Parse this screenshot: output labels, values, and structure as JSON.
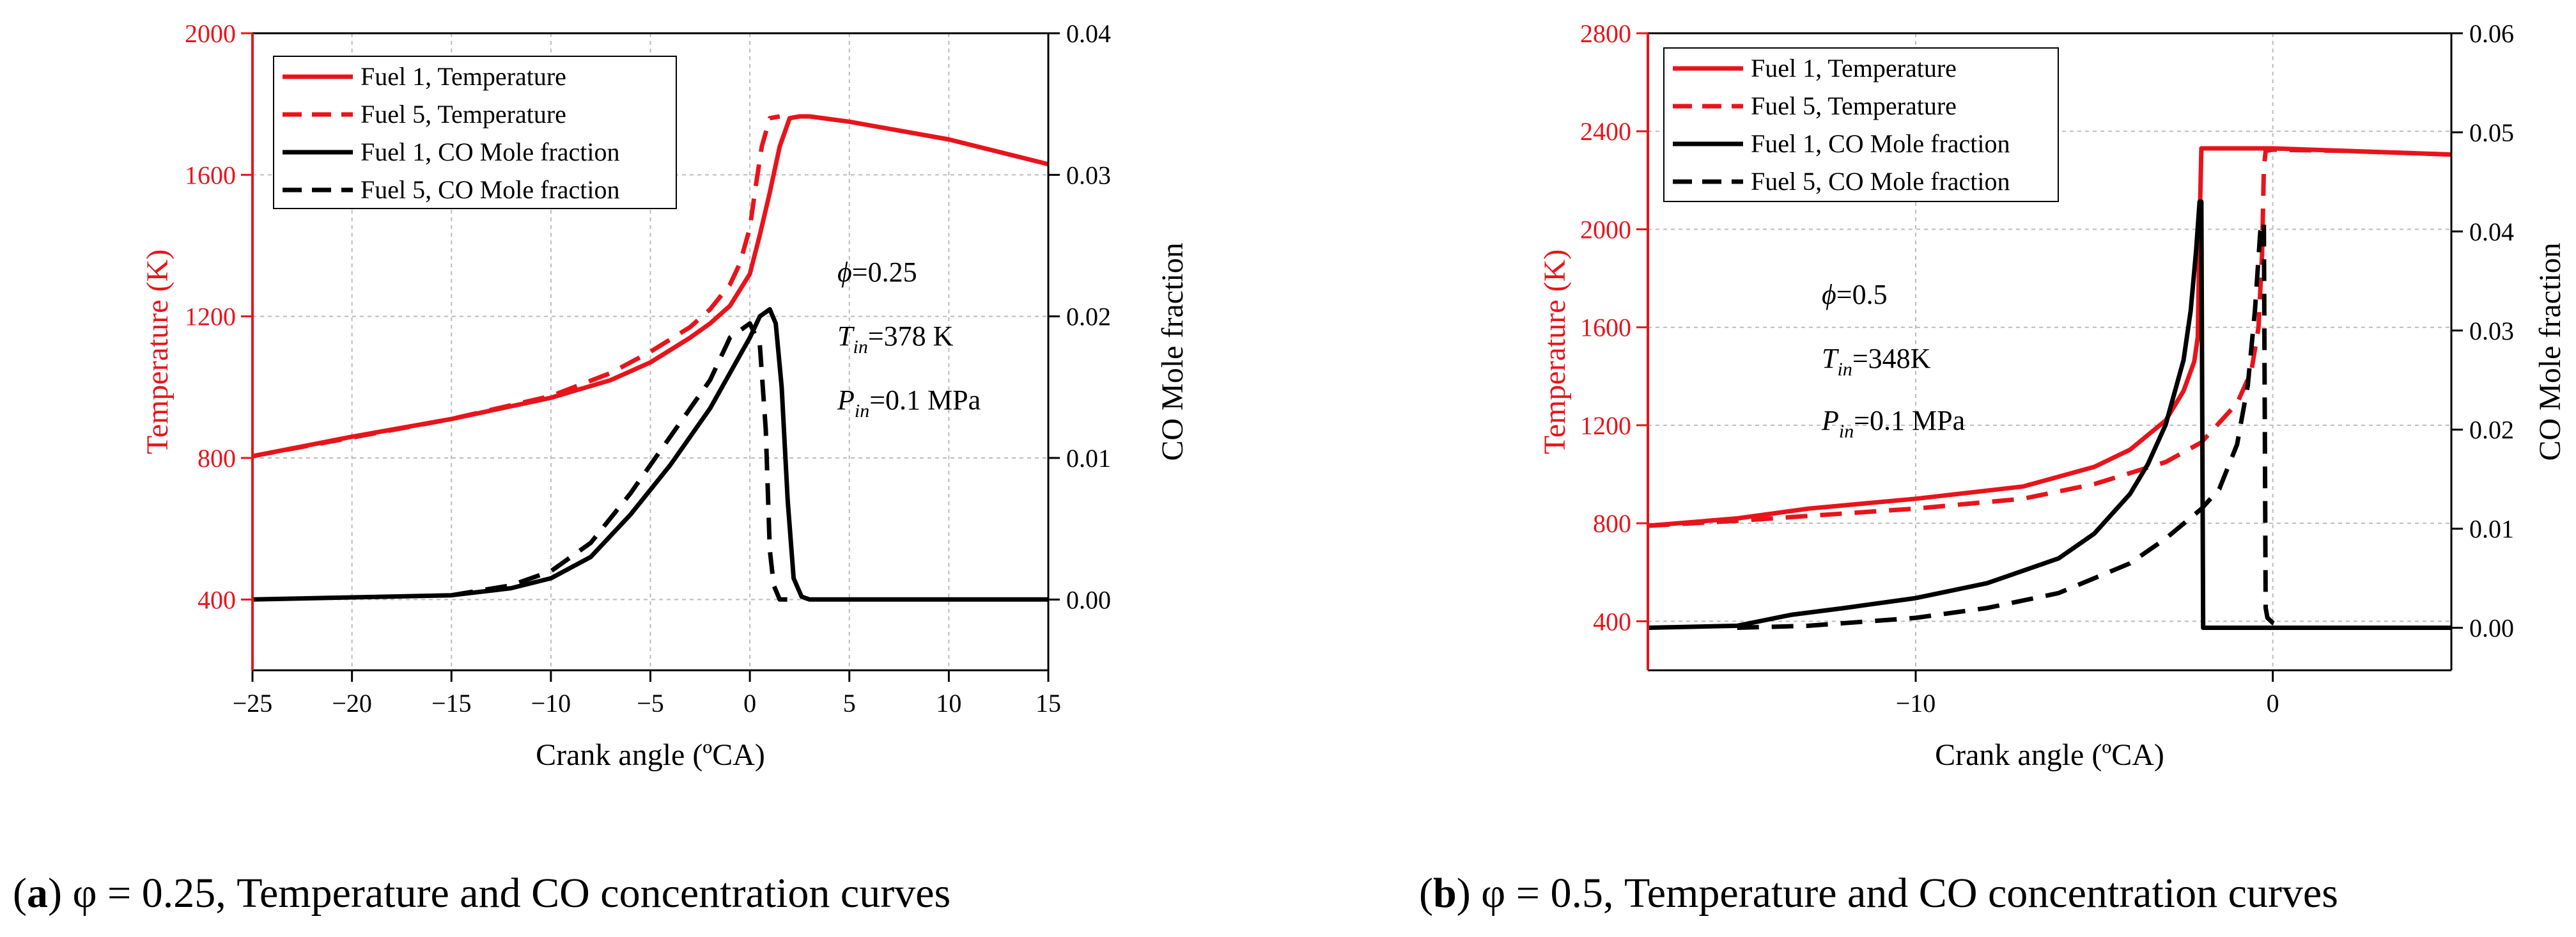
{
  "chart_data": [
    {
      "type": "line",
      "caption_letter": "a",
      "caption_text": " φ = 0.25, Temperature and CO concentration curves",
      "xlabel": "Crank angle (ºCA)",
      "ylabel_left": "Temperature (K)",
      "ylabel_right": "CO Mole fraction",
      "xlim": [
        -25,
        15
      ],
      "ylim_left": [
        200,
        2000
      ],
      "ylim_right": [
        -0.005,
        0.04
      ],
      "x_ticks": [
        -25,
        -20,
        -15,
        -10,
        -5,
        0,
        5,
        10,
        15
      ],
      "x_tick_labels": [
        "−25",
        "−20",
        "−15",
        "−10",
        "−5",
        "0",
        "5",
        "10",
        "15"
      ],
      "y_left_ticks": [
        400,
        800,
        1200,
        1600,
        2000
      ],
      "y_left_tick_labels": [
        "400",
        "800",
        "1200",
        "1600",
        "2000"
      ],
      "y_right_ticks": [
        0.0,
        0.01,
        0.02,
        0.03,
        0.04
      ],
      "y_right_tick_labels": [
        "0.00",
        "0.01",
        "0.02",
        "0.03",
        "0.04"
      ],
      "grid": true,
      "legend_position": "top-left",
      "annotation": {
        "phi_symbol": "ϕ",
        "phi_value": "=0.25",
        "t_main": "T",
        "t_sub": "in",
        "t_value": "=378 K",
        "p_main": "P",
        "p_sub": "in",
        "p_value": "=0.1 MPa"
      },
      "series": [
        {
          "name": "Fuel 1, Temperature",
          "color": "#e8141b",
          "dash": "solid",
          "axis": "left",
          "x": [
            -25,
            -20,
            -15,
            -10,
            -7,
            -5,
            -3,
            -2,
            -1,
            0,
            0.5,
            1.0,
            1.5,
            2.0,
            2.5,
            3,
            5,
            10,
            15
          ],
          "y": [
            805,
            860,
            910,
            970,
            1020,
            1070,
            1140,
            1180,
            1230,
            1320,
            1430,
            1550,
            1680,
            1760,
            1765,
            1765,
            1750,
            1700,
            1630
          ]
        },
        {
          "name": "Fuel 5, Temperature",
          "color": "#e8141b",
          "dash": "dashed",
          "axis": "left",
          "x": [
            -25,
            -15,
            -10,
            -7,
            -5,
            -3,
            -2,
            -1,
            -0.5,
            0,
            0.3,
            0.6,
            1.0,
            1.5
          ],
          "y": [
            805,
            910,
            975,
            1040,
            1100,
            1170,
            1220,
            1290,
            1350,
            1450,
            1570,
            1680,
            1760,
            1765
          ]
        },
        {
          "name": "Fuel 1, CO Mole fraction",
          "color": "#000000",
          "dash": "solid",
          "axis": "right",
          "x": [
            -25,
            -15,
            -12,
            -10,
            -8,
            -6,
            -4,
            -2,
            -1,
            0,
            0.5,
            1.0,
            1.3,
            1.6,
            1.9,
            2.2,
            2.6,
            3,
            15
          ],
          "y": [
            0.0,
            0.0003,
            0.0008,
            0.0015,
            0.003,
            0.006,
            0.0095,
            0.0135,
            0.016,
            0.0185,
            0.02,
            0.0205,
            0.0195,
            0.015,
            0.007,
            0.0015,
            0.0002,
            0.0,
            0.0
          ]
        },
        {
          "name": "Fuel 5, CO Mole fraction",
          "color": "#000000",
          "dash": "dashed",
          "axis": "right",
          "x": [
            -15,
            -12,
            -10,
            -8,
            -6,
            -4,
            -2,
            -1,
            0,
            0.5,
            0.8,
            1.0,
            1.2,
            1.5,
            2.0
          ],
          "y": [
            0.0003,
            0.001,
            0.002,
            0.004,
            0.0075,
            0.0115,
            0.0155,
            0.0185,
            0.0195,
            0.018,
            0.012,
            0.0035,
            0.001,
            0.0,
            0.0
          ]
        }
      ]
    },
    {
      "type": "line",
      "caption_letter": "b",
      "caption_text": " φ = 0.5, Temperature and CO concentration curves",
      "xlabel": "Crank angle (ºCA)",
      "ylabel_left": "Temperature (K)",
      "ylabel_right": "CO Mole fraction",
      "xlim": [
        -17.5,
        5
      ],
      "ylim_left": [
        200,
        2800
      ],
      "ylim_right": [
        -0.00429,
        0.06
      ],
      "x_ticks": [
        -10,
        0
      ],
      "x_tick_labels": [
        "−10",
        "0"
      ],
      "y_left_ticks": [
        400,
        800,
        1200,
        1600,
        2000,
        2400,
        2800
      ],
      "y_left_tick_labels": [
        "400",
        "800",
        "1200",
        "1600",
        "2000",
        "2400",
        "2800"
      ],
      "y_right_ticks": [
        0.0,
        0.01,
        0.02,
        0.03,
        0.04,
        0.05,
        0.06
      ],
      "y_right_tick_labels": [
        "0.00",
        "0.01",
        "0.02",
        "0.03",
        "0.04",
        "0.05",
        "0.06"
      ],
      "grid": true,
      "legend_position": "top-left",
      "annotation": {
        "phi_symbol": "ϕ",
        "phi_value": "=0.5",
        "t_main": "T",
        "t_sub": "in",
        "t_value": "=348K",
        "p_main": "P",
        "p_sub": "in",
        "p_value": "=0.1 MPa"
      },
      "series": [
        {
          "name": "Fuel 1, Temperature",
          "color": "#e8141b",
          "dash": "solid",
          "axis": "left",
          "x": [
            -17.5,
            -15,
            -13,
            -10,
            -7,
            -5,
            -4,
            -3,
            -2.5,
            -2.2,
            -2.1,
            -2.05,
            -2.0,
            -1.5,
            0,
            5
          ],
          "y": [
            790,
            820,
            860,
            900,
            950,
            1030,
            1100,
            1220,
            1340,
            1460,
            1560,
            2000,
            2330,
            2330,
            2330,
            2305
          ]
        },
        {
          "name": "Fuel 5, Temperature",
          "color": "#e8141b",
          "dash": "dashed",
          "axis": "left",
          "x": [
            -17.5,
            -15,
            -12,
            -10,
            -7,
            -5,
            -3,
            -2,
            -1,
            -0.6,
            -0.4,
            -0.3,
            -0.25,
            -0.2,
            0,
            2,
            5
          ],
          "y": [
            790,
            810,
            840,
            860,
            900,
            960,
            1050,
            1130,
            1290,
            1420,
            1600,
            1900,
            2250,
            2320,
            2325,
            2320,
            2305
          ]
        },
        {
          "name": "Fuel 1, CO Mole fraction",
          "color": "#000000",
          "dash": "solid",
          "axis": "right",
          "x": [
            -17.5,
            -15,
            -13.5,
            -12,
            -10,
            -8,
            -6,
            -5,
            -4,
            -3.5,
            -3,
            -2.5,
            -2.3,
            -2.15,
            -2.05,
            -2.0,
            -1.95,
            0,
            5
          ],
          "y": [
            0.0,
            0.0002,
            0.0013,
            0.002,
            0.003,
            0.0045,
            0.007,
            0.0095,
            0.0135,
            0.0165,
            0.0205,
            0.027,
            0.032,
            0.038,
            0.043,
            0.043,
            0.0,
            0.0,
            0.0
          ]
        },
        {
          "name": "Fuel 5, CO Mole fraction",
          "color": "#000000",
          "dash": "dashed",
          "axis": "right",
          "x": [
            -15,
            -13,
            -10,
            -8,
            -6,
            -4,
            -3,
            -2,
            -1.5,
            -1,
            -0.7,
            -0.5,
            -0.35,
            -0.25,
            -0.2,
            -0.15,
            0,
            0.3
          ],
          "y": [
            0.0,
            0.0002,
            0.001,
            0.002,
            0.0035,
            0.0065,
            0.009,
            0.012,
            0.014,
            0.0185,
            0.0245,
            0.032,
            0.04,
            0.041,
            0.002,
            0.001,
            0.0005,
            0.0
          ]
        }
      ]
    }
  ]
}
